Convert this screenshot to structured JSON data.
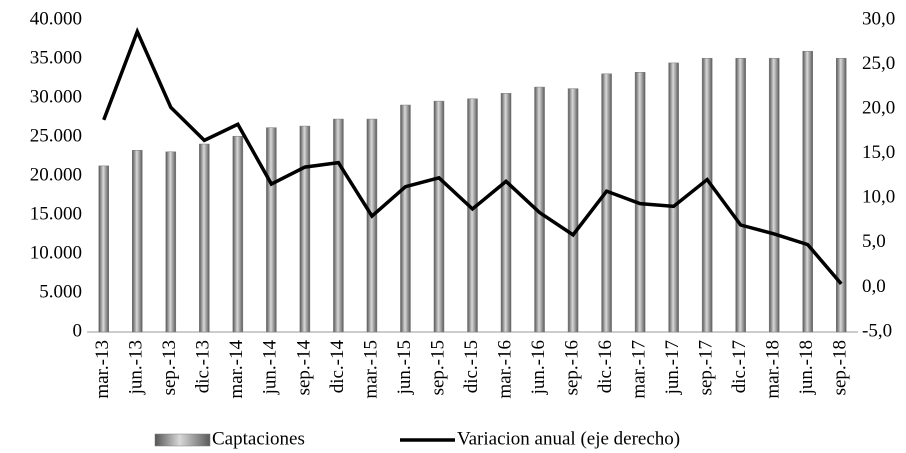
{
  "chart_data": {
    "type": "bar",
    "categories": [
      "mar.-13",
      "jun.-13",
      "sep.-13",
      "dic.-13",
      "mar.-14",
      "jun.-14",
      "sep.-14",
      "dic.-14",
      "mar.-15",
      "jun.-15",
      "sep.-15",
      "dic.-15",
      "mar.-16",
      "jun.-16",
      "sep.-16",
      "dic.-16",
      "mar.-17",
      "jun.-17",
      "sep.-17",
      "dic.-17",
      "mar.-18",
      "jun.-18",
      "sep.-18"
    ],
    "series": [
      {
        "name": "Captaciones",
        "type": "bar",
        "color": "#7a7a7a",
        "values": [
          21300,
          23300,
          23100,
          24100,
          25100,
          26200,
          26400,
          27300,
          27300,
          29100,
          29600,
          29900,
          30600,
          31400,
          31200,
          33100,
          33300,
          34500,
          35100,
          35100,
          35100,
          36000,
          35100
        ]
      },
      {
        "name": "Variacion anual (eje derecho)",
        "type": "line",
        "axis": "y2",
        "color": "#000000",
        "values": [
          18.8,
          28.7,
          20.2,
          16.5,
          18.3,
          11.6,
          13.5,
          14.0,
          8.0,
          11.3,
          12.3,
          8.8,
          11.9,
          8.4,
          5.9,
          10.8,
          9.4,
          9.1,
          12.1,
          7.0,
          6.0,
          4.8,
          0.4
        ]
      }
    ],
    "ylim": [
      0,
      40000
    ],
    "yticks": [
      0,
      {
        "value": 5000,
        "label": "5.000"
      },
      {
        "value": 10000,
        "label": "10.000"
      },
      {
        "value": 15000,
        "label": "15.000"
      },
      {
        "value": 20000,
        "label": "20.000"
      },
      {
        "value": 25000,
        "label": "25.000"
      },
      {
        "value": 30000,
        "label": "30.000"
      },
      {
        "value": 35000,
        "label": "35.000"
      },
      {
        "value": 40000,
        "label": "40.000"
      }
    ],
    "y2lim": [
      -5,
      30
    ],
    "y2ticks": [
      {
        "value": -5,
        "label": "-5,0"
      },
      {
        "value": 0,
        "label": "0,0"
      },
      {
        "value": 5,
        "label": "5,0"
      },
      {
        "value": 10,
        "label": "10,0"
      },
      {
        "value": 15,
        "label": "15,0"
      },
      {
        "value": 20,
        "label": "20,0"
      },
      {
        "value": 25,
        "label": "25,0"
      },
      {
        "value": 30,
        "label": "30,0"
      }
    ],
    "legend": "bottom"
  }
}
